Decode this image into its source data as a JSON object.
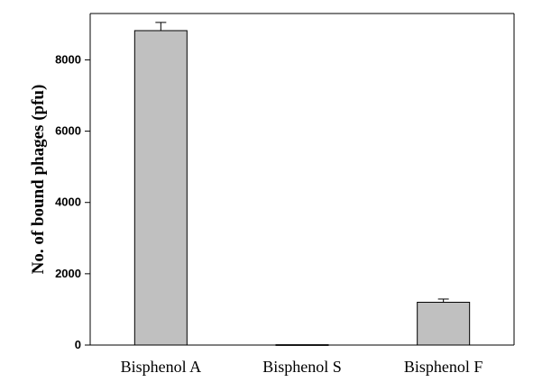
{
  "chart_data": {
    "type": "bar",
    "title": "",
    "xlabel": "",
    "ylabel": "No. of bound phages (pfu)",
    "categories": [
      "Bisphenol A",
      "Bisphenol S",
      "Bisphenol F"
    ],
    "values": [
      8820,
      10,
      1200
    ],
    "errors": [
      230,
      0,
      90
    ],
    "ylim": [
      0,
      9300
    ],
    "yticks": [
      0,
      2000,
      4000,
      6000,
      8000
    ],
    "ytick_labels": [
      "0",
      "2000",
      "4000",
      "6000",
      "8000"
    ],
    "grid": false,
    "legend": "none",
    "bar_color": "#c0c0c0",
    "edge_color": "#000000"
  }
}
